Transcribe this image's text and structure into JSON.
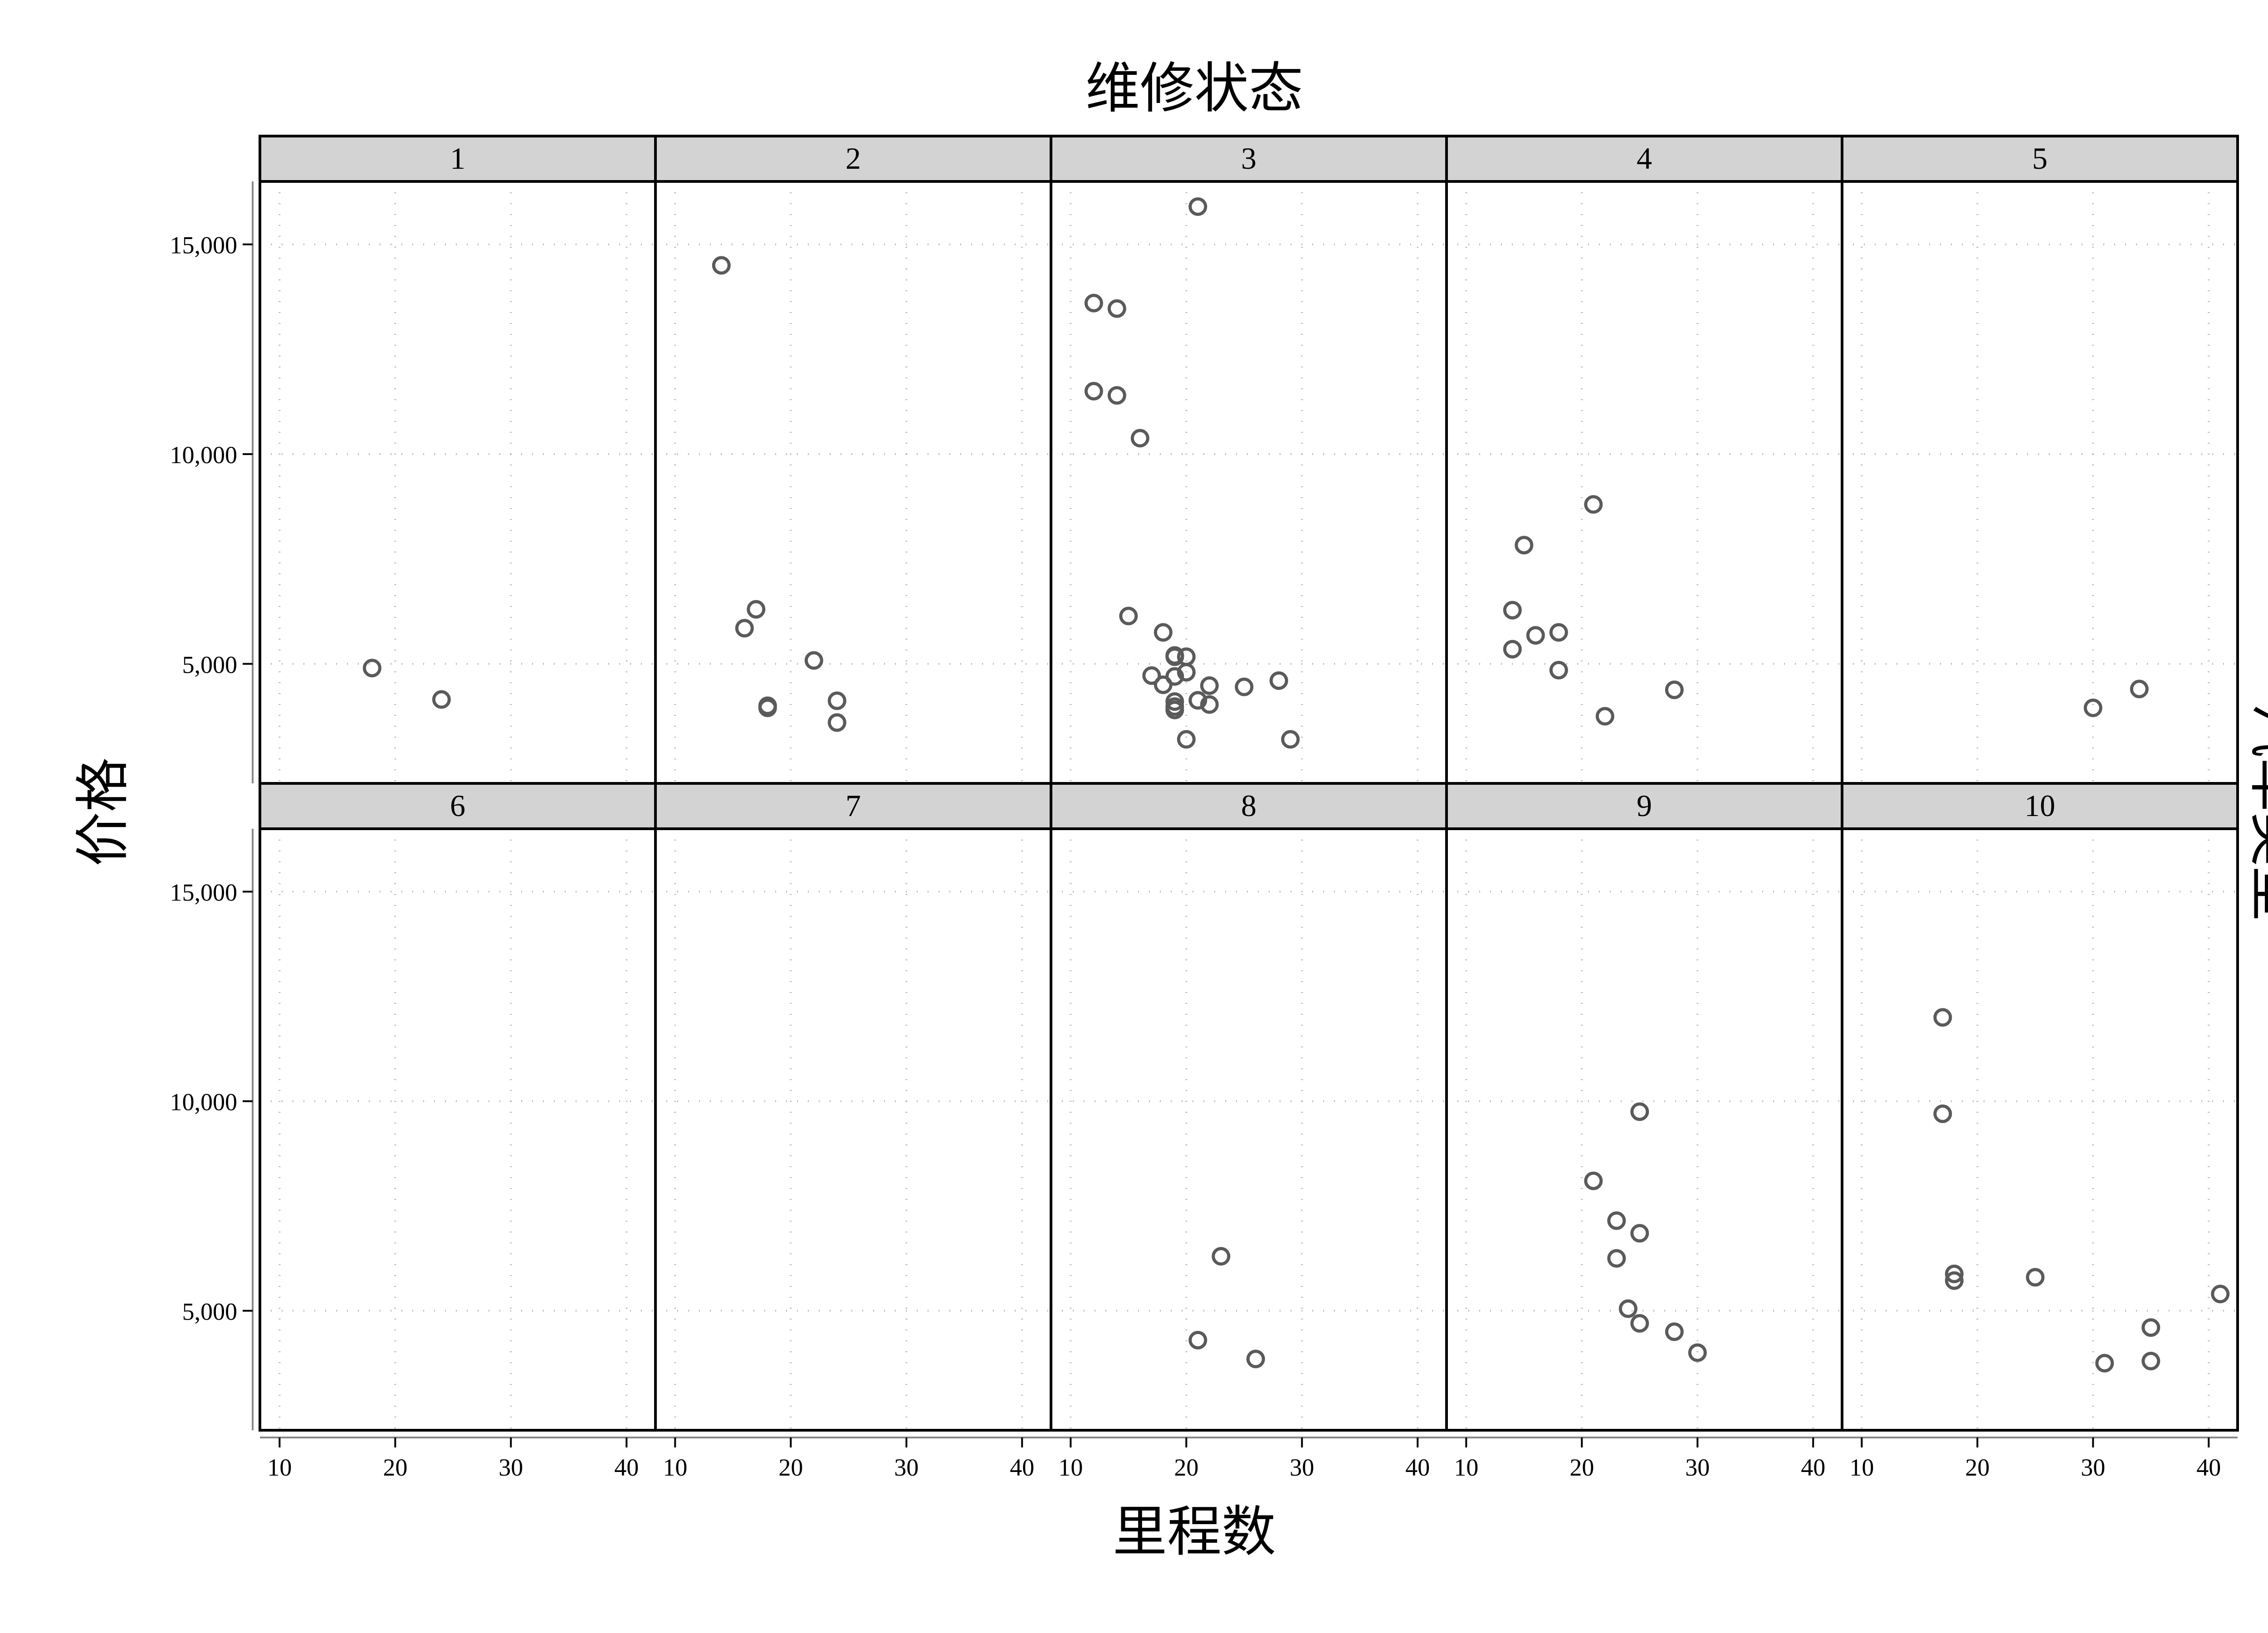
{
  "chart_data": {
    "type": "scatter",
    "title": "维修状态",
    "xlabel": "里程数",
    "ylabel": "价格",
    "facet_right_label": "汽车类型",
    "xlim": [
      8.3,
      42.5
    ],
    "ylim": [
      2150,
      16500
    ],
    "xticks": [
      10,
      20,
      30,
      40
    ],
    "xtick_labels": [
      "10",
      "20",
      "30",
      "40"
    ],
    "yticks": [
      5000,
      10000,
      15000
    ],
    "ytick_labels": [
      "5,000",
      "10,000",
      "15,000"
    ],
    "grid": "dotted",
    "point_color": "#5a5a5a",
    "strip_color": "#d3d3d3",
    "panels": [
      {
        "label": "1",
        "points": [
          [
            18,
            4900
          ],
          [
            24,
            4150
          ]
        ]
      },
      {
        "label": "2",
        "points": [
          [
            14,
            14500
          ],
          [
            17,
            6300
          ],
          [
            16,
            5850
          ],
          [
            22,
            5080
          ],
          [
            18,
            4000
          ],
          [
            18,
            3950
          ],
          [
            24,
            4120
          ],
          [
            24,
            3600
          ]
        ]
      },
      {
        "label": "3",
        "points": [
          [
            21,
            15900
          ],
          [
            12,
            13600
          ],
          [
            14,
            13470
          ],
          [
            12,
            11500
          ],
          [
            14,
            11400
          ],
          [
            16,
            10380
          ],
          [
            15,
            6140
          ],
          [
            18,
            5750
          ],
          [
            19,
            5200
          ],
          [
            19,
            5170
          ],
          [
            20,
            5170
          ],
          [
            20,
            4800
          ],
          [
            19,
            4700
          ],
          [
            17,
            4720
          ],
          [
            18,
            4500
          ],
          [
            22,
            4480
          ],
          [
            25,
            4450
          ],
          [
            28,
            4600
          ],
          [
            21,
            4130
          ],
          [
            22,
            4030
          ],
          [
            19,
            4100
          ],
          [
            19,
            3980
          ],
          [
            19,
            3900
          ],
          [
            20,
            3200
          ],
          [
            29,
            3200
          ]
        ]
      },
      {
        "label": "4",
        "points": [
          [
            21,
            8800
          ],
          [
            15,
            7830
          ],
          [
            14,
            6280
          ],
          [
            18,
            5750
          ],
          [
            16,
            5680
          ],
          [
            14,
            5350
          ],
          [
            18,
            4850
          ],
          [
            28,
            4380
          ],
          [
            22,
            3750
          ]
        ]
      },
      {
        "label": "5",
        "points": [
          [
            30,
            3950
          ],
          [
            34,
            4400
          ]
        ]
      },
      {
        "label": "6",
        "points": []
      },
      {
        "label": "7",
        "points": []
      },
      {
        "label": "8",
        "points": [
          [
            23,
            6300
          ],
          [
            21,
            4300
          ],
          [
            26,
            3850
          ]
        ]
      },
      {
        "label": "9",
        "points": [
          [
            25,
            9750
          ],
          [
            21,
            8100
          ],
          [
            23,
            7150
          ],
          [
            25,
            6850
          ],
          [
            23,
            6250
          ],
          [
            24,
            5050
          ],
          [
            25,
            4700
          ],
          [
            28,
            4500
          ],
          [
            30,
            4000
          ]
        ]
      },
      {
        "label": "10",
        "points": [
          [
            17,
            12000
          ],
          [
            17,
            9700
          ],
          [
            18,
            5880
          ],
          [
            18,
            5720
          ],
          [
            25,
            5800
          ],
          [
            41,
            5400
          ],
          [
            35,
            4600
          ],
          [
            31,
            3750
          ],
          [
            35,
            3800
          ]
        ]
      }
    ]
  }
}
